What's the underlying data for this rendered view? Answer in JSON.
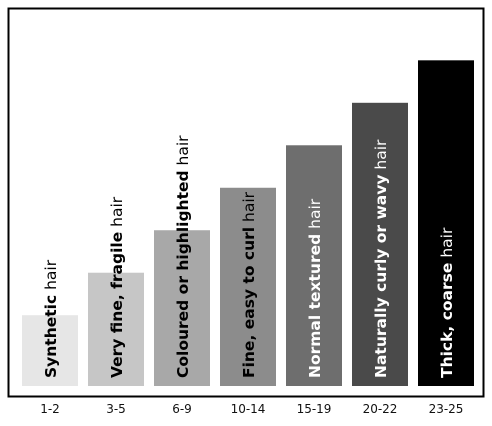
{
  "chart_data": {
    "type": "bar",
    "categories": [
      "1-2",
      "3-5",
      "6-9",
      "10-14",
      "15-19",
      "20-22",
      "23-25"
    ],
    "values": [
      5,
      8,
      11,
      14,
      17,
      20,
      23
    ],
    "ylim": [
      0,
      25
    ],
    "grid": false,
    "bar_labels": [
      {
        "bold": "Synthetic",
        "regular": " hair"
      },
      {
        "bold": "Very fine, fragile",
        "regular": " hair"
      },
      {
        "bold": "Coloured or highlighted",
        "regular": " hair"
      },
      {
        "bold": "Fine, easy to curl",
        "regular": " hair"
      },
      {
        "bold": "Normal textured",
        "regular": " hair"
      },
      {
        "bold": "Naturally curly or wavy",
        "regular": " hair"
      },
      {
        "bold": "Thick, coarse",
        "regular": " hair"
      }
    ],
    "bar_colors": [
      "#e6e6e6",
      "#c6c6c6",
      "#a8a8a8",
      "#8c8c8c",
      "#6e6e6e",
      "#4a4a4a",
      "#000000"
    ],
    "label_colors": [
      "#000000",
      "#000000",
      "#000000",
      "#000000",
      "#ffffff",
      "#ffffff",
      "#ffffff"
    ]
  }
}
